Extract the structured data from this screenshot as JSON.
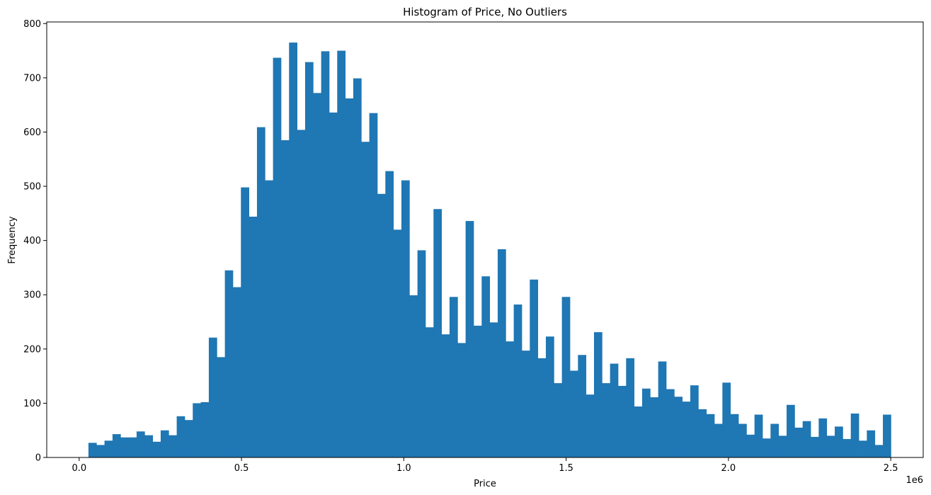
{
  "chart_data": {
    "type": "bar",
    "title": "Histogram of Price, No Outliers",
    "xlabel": "Price",
    "ylabel": "Frequency",
    "x_offset_label": "1e6",
    "xlim": [
      -0.1,
      2.6
    ],
    "ylim": [
      0,
      803
    ],
    "x_ticks": [
      0.0,
      0.5,
      1.0,
      1.5,
      2.0,
      2.5
    ],
    "x_tick_labels": [
      "0.0",
      "0.5",
      "1.0",
      "1.5",
      "2.0",
      "2.5"
    ],
    "y_ticks": [
      0,
      100,
      200,
      300,
      400,
      500,
      600,
      700,
      800
    ],
    "y_tick_labels": [
      "0",
      "100",
      "200",
      "300",
      "400",
      "500",
      "600",
      "700",
      "800"
    ],
    "bin_start": 0.0285,
    "bin_width": 0.02472,
    "values": [
      27,
      23,
      31,
      43,
      37,
      37,
      48,
      41,
      29,
      50,
      41,
      76,
      69,
      100,
      102,
      221,
      185,
      345,
      314,
      498,
      444,
      609,
      511,
      737,
      585,
      765,
      604,
      729,
      672,
      749,
      636,
      750,
      662,
      699,
      582,
      635,
      486,
      528,
      420,
      511,
      299,
      382,
      240,
      458,
      227,
      296,
      211,
      436,
      243,
      334,
      249,
      384,
      214,
      282,
      197,
      328,
      183,
      223,
      137,
      296,
      160,
      189,
      116,
      231,
      137,
      173,
      132,
      183,
      94,
      127,
      111,
      177,
      126,
      112,
      103,
      133,
      89,
      80,
      62,
      138,
      80,
      62,
      42,
      79,
      35,
      62,
      40,
      97,
      55,
      67,
      38,
      72,
      40,
      57,
      34,
      81,
      31,
      50,
      23,
      79
    ],
    "colors": {
      "bar": "#1f77b4",
      "axes": "#000000",
      "background": "#ffffff"
    },
    "grid": false,
    "legend": "none"
  }
}
